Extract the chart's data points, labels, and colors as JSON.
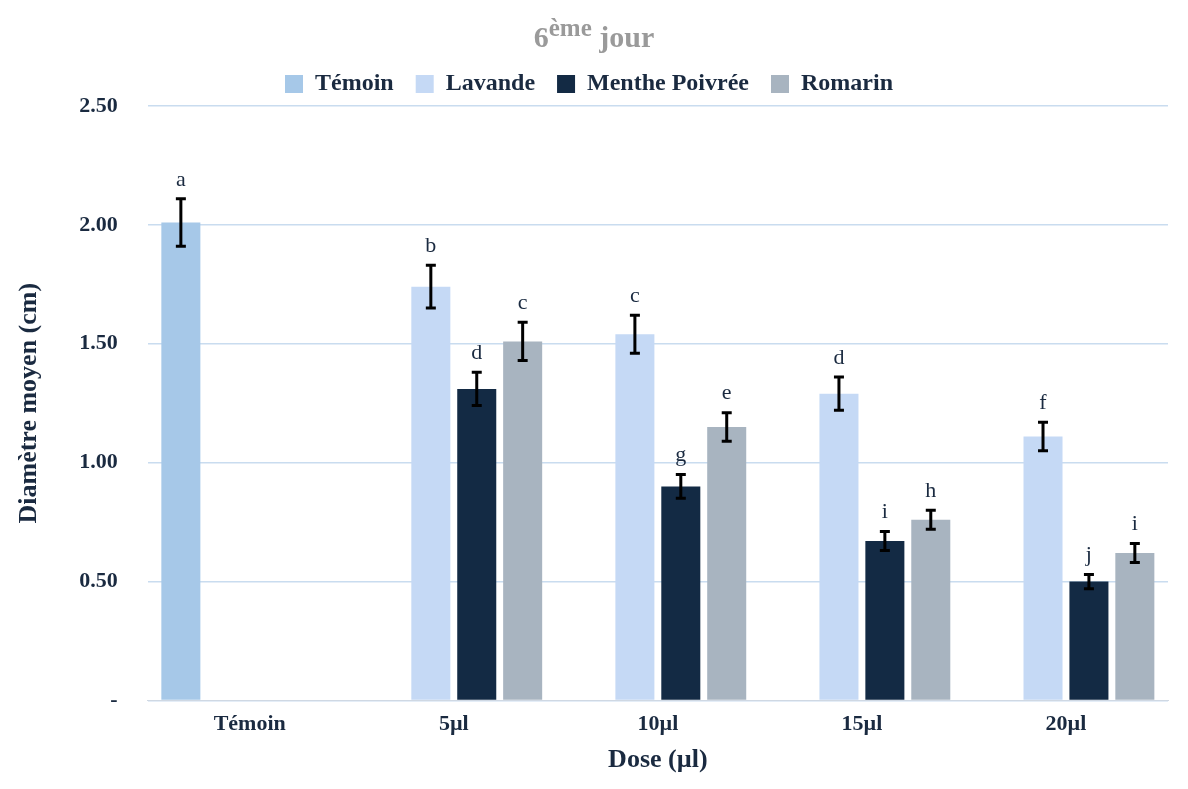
{
  "chart_data": {
    "type": "bar",
    "title": "6$^{ème}$ jour",
    "xlabel": "Dose (µl)",
    "ylabel": "Diamètre moyen (cm)",
    "categories": [
      "Témoin",
      "5µl",
      "10µl",
      "15µl",
      "20µl"
    ],
    "series": [
      {
        "name": "Témoin",
        "color": "#a6c8e8",
        "values": [
          2.01,
          null,
          null,
          null,
          null
        ],
        "errors": [
          0.1,
          null,
          null,
          null,
          null
        ],
        "value_labels": [
          "a",
          null,
          null,
          null,
          null
        ]
      },
      {
        "name": "Lavande",
        "color": "#c5d9f5",
        "values": [
          null,
          1.74,
          1.54,
          1.29,
          1.11
        ],
        "errors": [
          null,
          0.09,
          0.08,
          0.07,
          0.06
        ],
        "value_labels": [
          null,
          "b",
          "c",
          "d",
          "f"
        ]
      },
      {
        "name": "Menthe Poivrée",
        "color": "#132a44",
        "values": [
          null,
          1.31,
          0.9,
          0.67,
          0.5
        ],
        "errors": [
          null,
          0.07,
          0.05,
          0.04,
          0.03
        ],
        "value_labels": [
          null,
          "d",
          "g",
          "i",
          "j"
        ]
      },
      {
        "name": "Romarin",
        "color": "#a8b4c0",
        "values": [
          null,
          1.51,
          1.15,
          0.76,
          0.62
        ],
        "errors": [
          null,
          0.08,
          0.06,
          0.04,
          0.04
        ],
        "value_labels": [
          null,
          "c",
          "e",
          "h",
          "i"
        ]
      }
    ],
    "ylim": [
      0,
      2.5
    ],
    "yticks": [
      {
        "value": 0,
        "label": "-"
      },
      {
        "value": 0.5,
        "label": "0.50"
      },
      {
        "value": 1,
        "label": "1.00"
      },
      {
        "value": 1.5,
        "label": "1.50"
      },
      {
        "value": 2,
        "label": "2.00"
      },
      {
        "value": 2.5,
        "label": "2.50"
      }
    ],
    "grid": "y",
    "legend": "top"
  }
}
